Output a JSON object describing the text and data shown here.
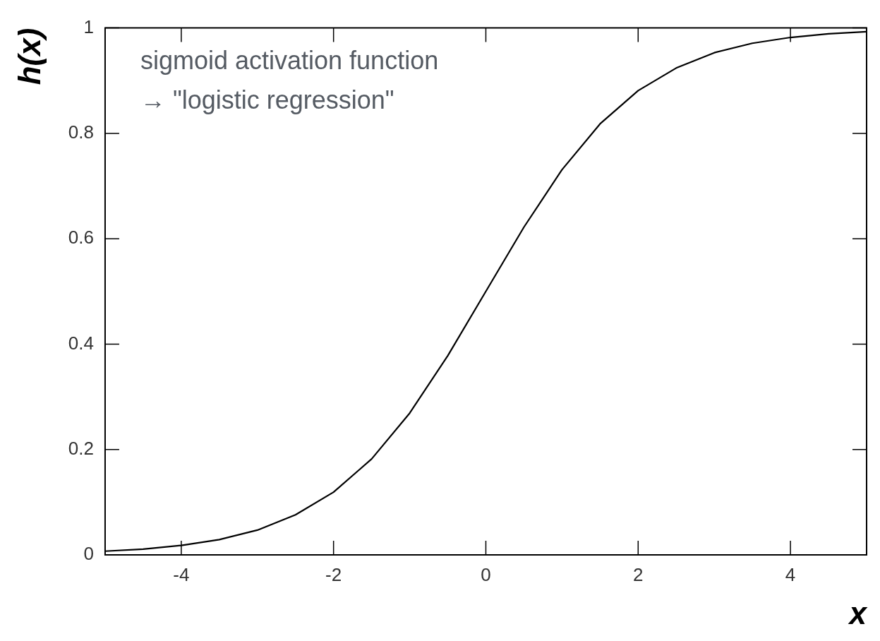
{
  "chart_data": {
    "type": "line",
    "xlabel": "x",
    "ylabel": "h(x)",
    "annotations": [
      "sigmoid activation function",
      "→ \"logistic regression\""
    ],
    "series": [
      {
        "color": "#000000",
        "x": [
          -5,
          -4.5,
          -4,
          -3.5,
          -3,
          -2.5,
          -2,
          -1.5,
          -1,
          -0.5,
          0,
          0.5,
          1,
          1.5,
          2,
          2.5,
          3,
          3.5,
          4,
          4.5,
          5
        ],
        "values": [
          0.007,
          0.011,
          0.018,
          0.029,
          0.047,
          0.076,
          0.119,
          0.182,
          0.269,
          0.378,
          0.5,
          0.622,
          0.731,
          0.818,
          0.881,
          0.924,
          0.953,
          0.971,
          0.982,
          0.989,
          0.993
        ]
      }
    ],
    "xlim": [
      -5,
      5
    ],
    "ylim": [
      0,
      1
    ],
    "xticks": [
      -4,
      -2,
      0,
      2,
      4
    ],
    "yticks": [
      0,
      0.2,
      0.4,
      0.6,
      0.8,
      1
    ],
    "grid": false,
    "legend": false,
    "marker": "none",
    "line_style": "solid"
  }
}
